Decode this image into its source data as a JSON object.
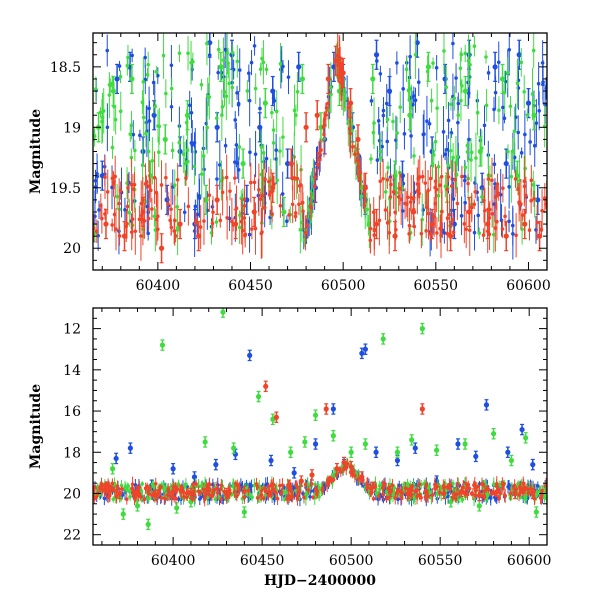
{
  "chart_data": [
    {
      "type": "scatter",
      "panel": "top",
      "title": "",
      "xlabel": "",
      "ylabel": "Magnitude",
      "xlim": [
        60365,
        60610
      ],
      "ylim": [
        20.18,
        18.22
      ],
      "y_inverted": true,
      "x_ticks": [
        60400,
        60450,
        60500,
        60550,
        60600
      ],
      "y_ticks": [
        18.5,
        19,
        19.5,
        20
      ],
      "y_tick_labels": [
        "18.5",
        "19",
        "19.5",
        "20"
      ],
      "x_tick_labels": [
        "60400",
        "60450",
        "60500",
        "60550",
        "60600"
      ],
      "grid": false,
      "legend": "none",
      "errorbars": true,
      "colors": {
        "blue": "#1f4fe0",
        "green": "#3fdc3f",
        "red": "#f0442a"
      },
      "series": [
        {
          "color": "#1f4fe0",
          "points": [
            [
              60370,
              19.4
            ],
            [
              60378,
              18.6
            ],
            [
              60385,
              18.5
            ],
            [
              60392,
              19.2
            ],
            [
              60398,
              18.9
            ],
            [
              60405,
              19.6
            ],
            [
              60412,
              19.2
            ],
            [
              60420,
              19.8
            ],
            [
              60428,
              18.3
            ],
            [
              60432,
              19.0
            ],
            [
              60440,
              18.4
            ],
            [
              60448,
              19.6
            ],
            [
              60455,
              19.0
            ],
            [
              60462,
              18.7
            ],
            [
              60470,
              19.3
            ],
            [
              60476,
              18.5
            ],
            [
              60485,
              19.5
            ],
            [
              60490,
              19.1
            ],
            [
              60495,
              18.5
            ],
            [
              60500,
              18.6
            ],
            [
              60505,
              19.0
            ],
            [
              60512,
              19.6
            ],
            [
              60518,
              18.4
            ],
            [
              60525,
              18.7
            ],
            [
              60532,
              19.4
            ],
            [
              60540,
              18.3
            ],
            [
              60548,
              19.2
            ],
            [
              60555,
              18.6
            ],
            [
              60560,
              19.8
            ],
            [
              60568,
              18.4
            ],
            [
              60575,
              19.5
            ],
            [
              60582,
              18.5
            ],
            [
              60588,
              19.3
            ],
            [
              60595,
              18.4
            ],
            [
              60600,
              18.8
            ],
            [
              60605,
              19.6
            ]
          ]
        },
        {
          "color": "#3fdc3f",
          "points": [
            [
              60368,
              19.0
            ],
            [
              60376,
              18.7
            ],
            [
              60386,
              18.6
            ],
            [
              60396,
              19.4
            ],
            [
              60404,
              19.1
            ],
            [
              60416,
              18.9
            ],
            [
              60426,
              19.6
            ],
            [
              60434,
              18.5
            ],
            [
              60446,
              19.3
            ],
            [
              60458,
              18.8
            ],
            [
              60468,
              19.7
            ],
            [
              60478,
              18.6
            ],
            [
              60488,
              19.0
            ],
            [
              60498,
              18.7
            ],
            [
              60508,
              19.3
            ],
            [
              60516,
              18.6
            ],
            [
              60528,
              19.4
            ],
            [
              60536,
              18.9
            ],
            [
              60546,
              18.5
            ],
            [
              60556,
              19.5
            ],
            [
              60566,
              18.7
            ],
            [
              60574,
              19.2
            ],
            [
              60586,
              18.6
            ],
            [
              60594,
              19.4
            ],
            [
              60603,
              18.9
            ]
          ]
        },
        {
          "color": "#f0442a",
          "points": [
            [
              60372,
              19.8
            ],
            [
              60382,
              19.9
            ],
            [
              60392,
              19.7
            ],
            [
              60402,
              20.0
            ],
            [
              60412,
              19.8
            ],
            [
              60422,
              19.9
            ],
            [
              60432,
              19.6
            ],
            [
              60442,
              19.8
            ],
            [
              60452,
              19.7
            ],
            [
              60462,
              19.5
            ],
            [
              60472,
              19.3
            ],
            [
              60480,
              19.0
            ],
            [
              60486,
              18.9
            ],
            [
              60492,
              18.6
            ],
            [
              60496,
              18.45
            ],
            [
              60500,
              18.55
            ],
            [
              60504,
              18.8
            ],
            [
              60508,
              19.1
            ],
            [
              60512,
              19.5
            ],
            [
              60518,
              19.8
            ],
            [
              60528,
              19.9
            ],
            [
              60538,
              19.7
            ],
            [
              60548,
              19.8
            ],
            [
              60558,
              19.9
            ],
            [
              60568,
              19.7
            ],
            [
              60578,
              19.8
            ],
            [
              60588,
              19.9
            ],
            [
              60598,
              19.8
            ],
            [
              60606,
              19.9
            ]
          ]
        }
      ]
    },
    {
      "type": "scatter",
      "panel": "bottom",
      "title": "",
      "xlabel": "HJD−2400000",
      "ylabel": "Magnitude",
      "xlim": [
        60355,
        60610
      ],
      "ylim": [
        22.5,
        11
      ],
      "y_inverted": true,
      "x_ticks": [
        60400,
        60450,
        60500,
        60550,
        60600
      ],
      "y_ticks": [
        12,
        14,
        16,
        18,
        20,
        22
      ],
      "x_tick_labels": [
        "60400",
        "60450",
        "60500",
        "60550",
        "60600"
      ],
      "y_tick_labels": [
        "12",
        "14",
        "16",
        "18",
        "20",
        "22"
      ],
      "grid": false,
      "legend": "none",
      "errorbars": true,
      "colors": {
        "blue": "#1f4fe0",
        "green": "#3fdc3f",
        "red": "#f0442a"
      },
      "series": [
        {
          "color": "#1f4fe0",
          "points": [
            [
              60368,
              18.3
            ],
            [
              60376,
              17.8
            ],
            [
              60388,
              19.6
            ],
            [
              60400,
              18.8
            ],
            [
              60412,
              19.2
            ],
            [
              60424,
              18.6
            ],
            [
              60435,
              18.1
            ],
            [
              60443,
              13.3
            ],
            [
              60455,
              18.4
            ],
            [
              60468,
              19.0
            ],
            [
              60480,
              17.6
            ],
            [
              60490,
              15.9
            ],
            [
              60496,
              18.6
            ],
            [
              60506,
              13.2
            ],
            [
              60508,
              13.0
            ],
            [
              60514,
              18.0
            ],
            [
              60526,
              18.4
            ],
            [
              60536,
              17.8
            ],
            [
              60548,
              19.4
            ],
            [
              60560,
              17.6
            ],
            [
              60570,
              18.2
            ],
            [
              60576,
              15.7
            ],
            [
              60588,
              18.0
            ],
            [
              60596,
              16.9
            ],
            [
              60602,
              18.6
            ]
          ]
        },
        {
          "color": "#3fdc3f",
          "points": [
            [
              60366,
              18.8
            ],
            [
              60372,
              21.0
            ],
            [
              60380,
              20.6
            ],
            [
              60386,
              21.5
            ],
            [
              60394,
              12.8
            ],
            [
              60402,
              20.7
            ],
            [
              60410,
              20.4
            ],
            [
              60418,
              17.5
            ],
            [
              60428,
              11.2
            ],
            [
              60434,
              17.8
            ],
            [
              60440,
              20.9
            ],
            [
              60448,
              15.3
            ],
            [
              60456,
              16.4
            ],
            [
              60466,
              18.0
            ],
            [
              60474,
              17.5
            ],
            [
              60480,
              16.2
            ],
            [
              60490,
              17.2
            ],
            [
              60500,
              18.0
            ],
            [
              60508,
              17.6
            ],
            [
              60518,
              12.5
            ],
            [
              60526,
              18.0
            ],
            [
              60534,
              17.4
            ],
            [
              60540,
              12.0
            ],
            [
              60548,
              17.9
            ],
            [
              60556,
              20.4
            ],
            [
              60564,
              17.6
            ],
            [
              60572,
              20.6
            ],
            [
              60580,
              17.1
            ],
            [
              60590,
              18.4
            ],
            [
              60598,
              17.3
            ],
            [
              60604,
              20.9
            ]
          ]
        },
        {
          "color": "#f0442a",
          "points": [
            [
              60370,
              20.0
            ],
            [
              60380,
              19.9
            ],
            [
              60390,
              20.1
            ],
            [
              60400,
              19.9
            ],
            [
              60410,
              20.0
            ],
            [
              60420,
              19.8
            ],
            [
              60430,
              20.0
            ],
            [
              60440,
              19.9
            ],
            [
              60452,
              14.8
            ],
            [
              60458,
              16.3
            ],
            [
              60465,
              19.6
            ],
            [
              60472,
              19.4
            ],
            [
              60478,
              19.1
            ],
            [
              60486,
              15.9
            ],
            [
              60492,
              18.8
            ],
            [
              60496,
              18.5
            ],
            [
              60500,
              18.7
            ],
            [
              60506,
              19.2
            ],
            [
              60512,
              19.7
            ],
            [
              60522,
              19.9
            ],
            [
              60532,
              20.0
            ],
            [
              60540,
              15.9
            ],
            [
              60542,
              19.9
            ],
            [
              60552,
              20.0
            ],
            [
              60562,
              19.9
            ],
            [
              60572,
              20.1
            ],
            [
              60582,
              19.9
            ],
            [
              60592,
              20.0
            ],
            [
              60602,
              20.0
            ]
          ]
        }
      ]
    }
  ]
}
